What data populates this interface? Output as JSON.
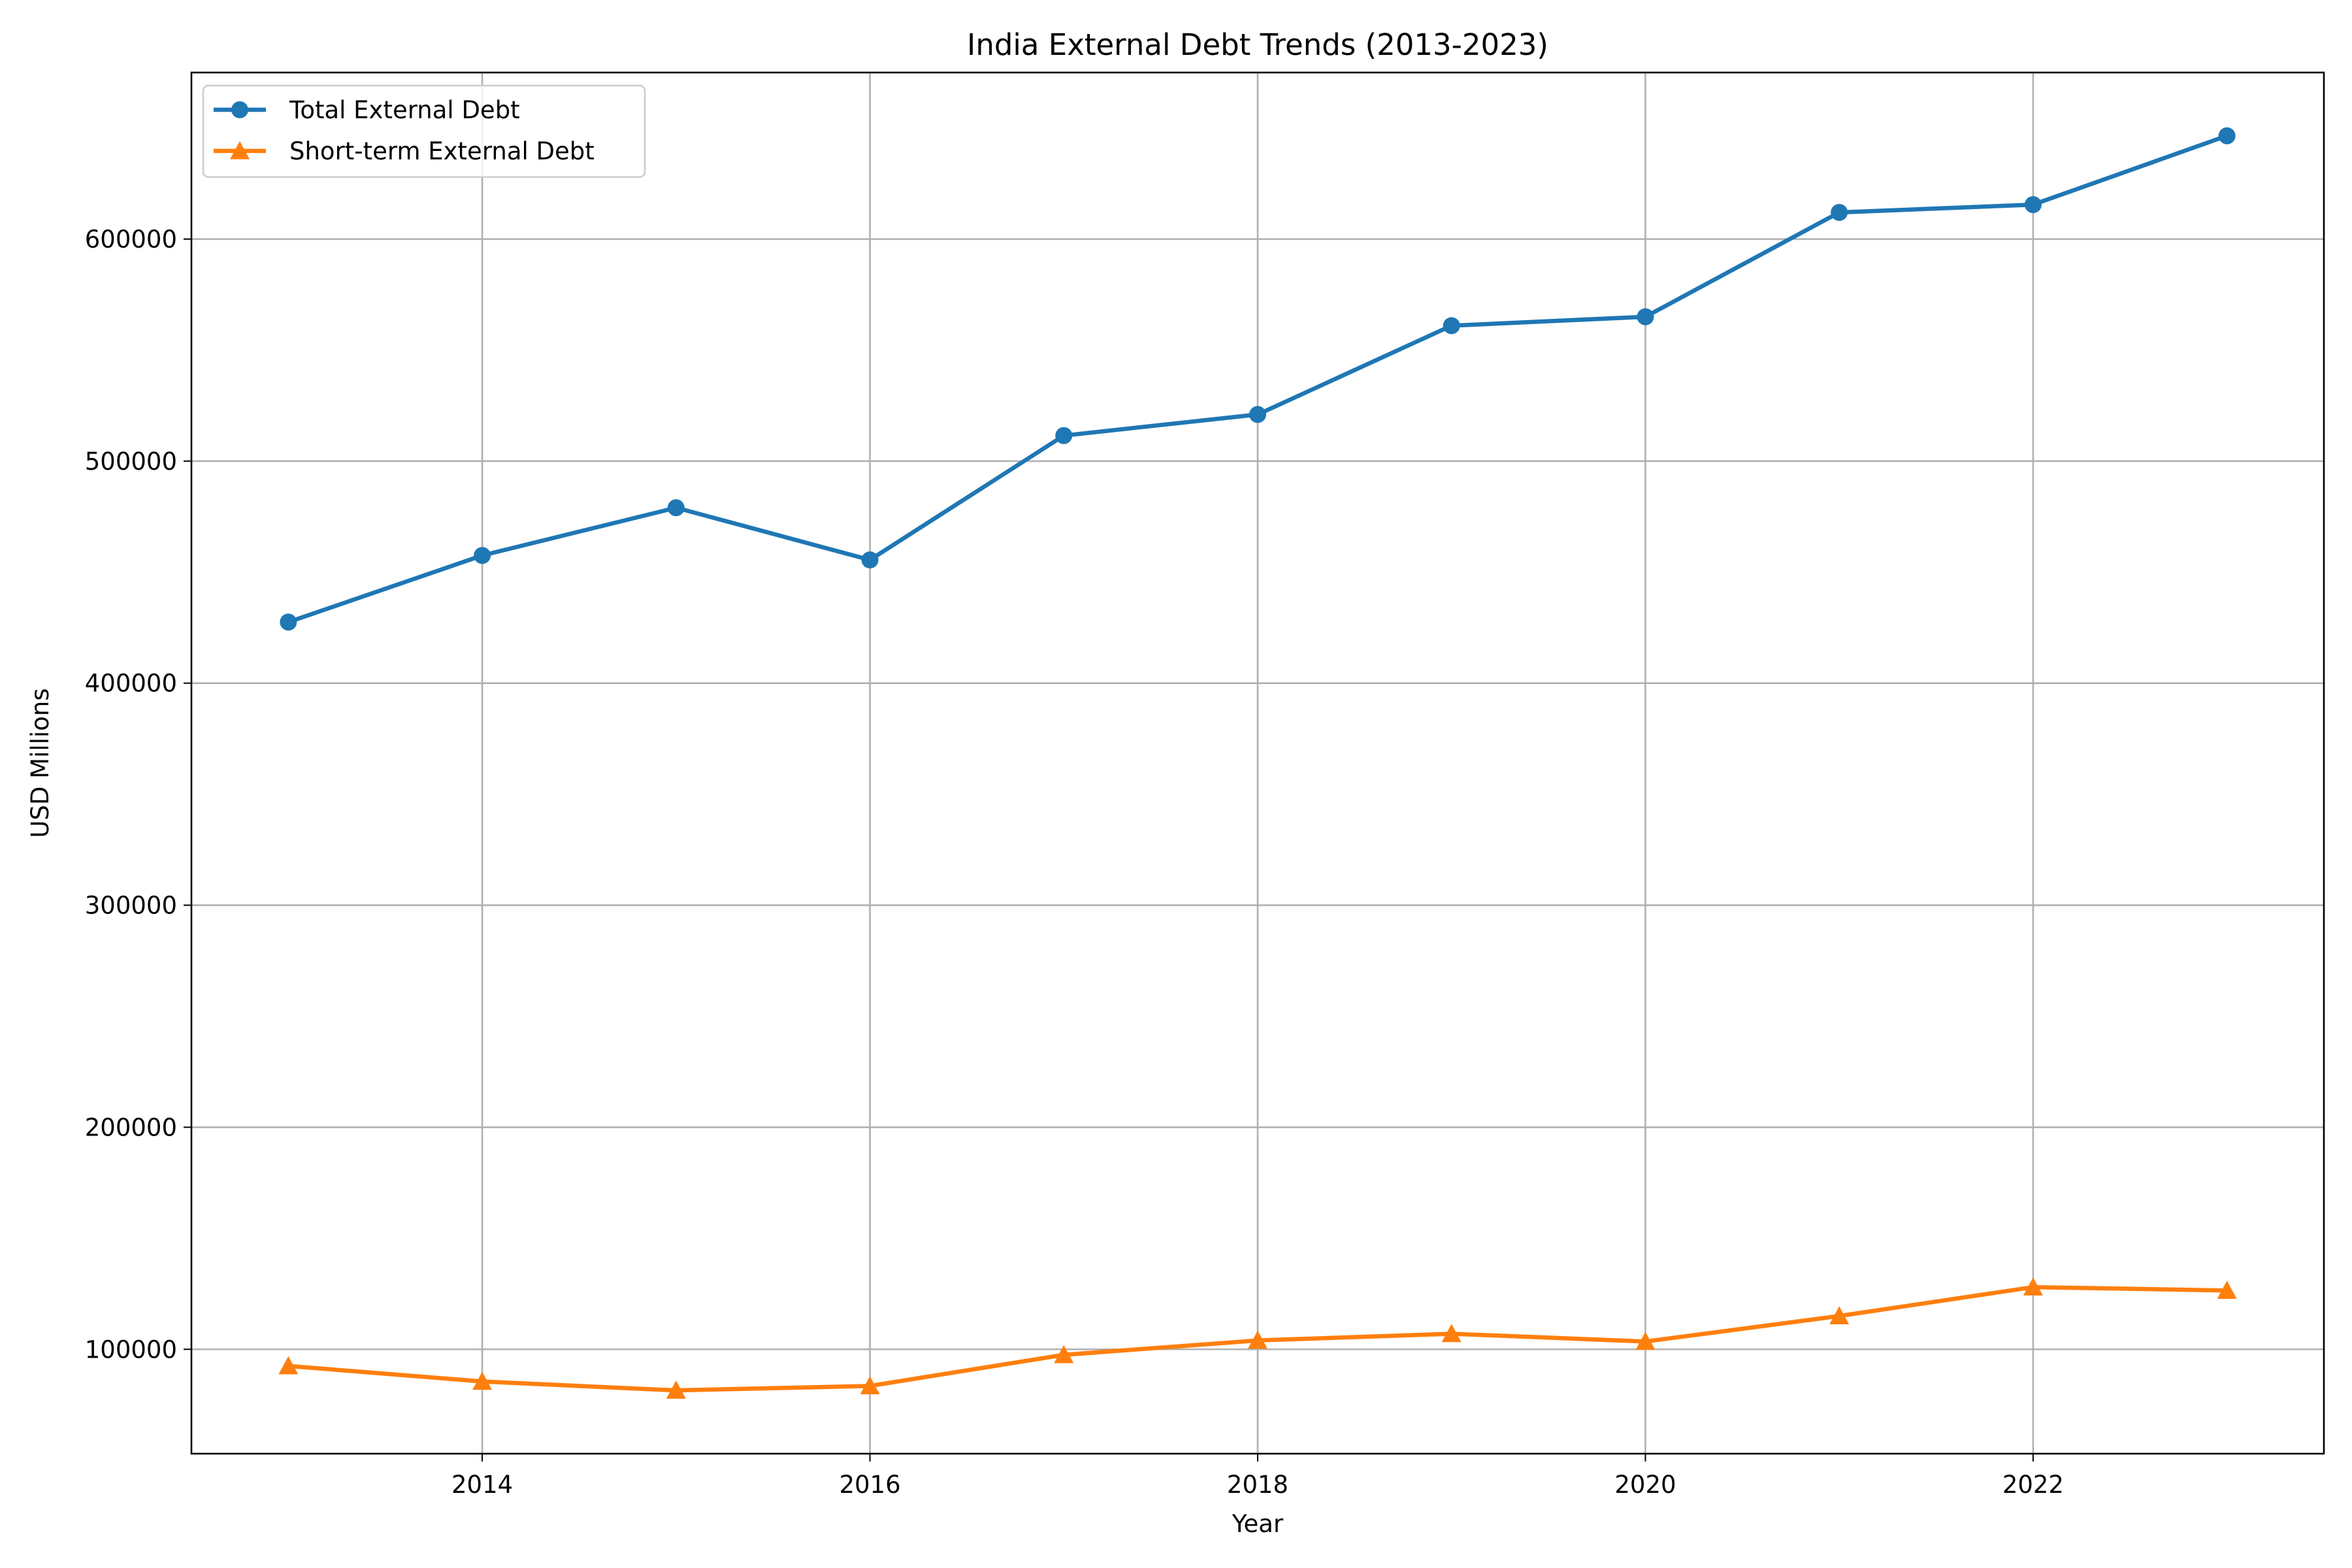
{
  "chart_data": {
    "type": "line",
    "title": "India External Debt Trends (2013-2023)",
    "xlabel": "Year",
    "ylabel": "USD Millions",
    "x": [
      2013,
      2014,
      2015,
      2016,
      2017,
      2018,
      2019,
      2020,
      2021,
      2022,
      2023
    ],
    "xlim": [
      2012.5,
      2023.5
    ],
    "ylim": [
      53000,
      675000
    ],
    "xticks": [
      2014,
      2016,
      2018,
      2020,
      2022
    ],
    "yticks": [
      100000,
      200000,
      300000,
      400000,
      500000,
      600000
    ],
    "grid": true,
    "legend_position": "top-left",
    "series": [
      {
        "name": "Total External Debt",
        "color": "#1f77b4",
        "marker": "circle",
        "values": [
          427500,
          457500,
          479000,
          455500,
          511500,
          521000,
          561000,
          565000,
          612000,
          615500,
          646500
        ]
      },
      {
        "name": "Short-term External Debt",
        "color": "#ff7f0e",
        "marker": "triangle",
        "values": [
          92500,
          85500,
          81500,
          83500,
          97500,
          104000,
          107000,
          103500,
          115000,
          128000,
          126500
        ]
      }
    ]
  }
}
